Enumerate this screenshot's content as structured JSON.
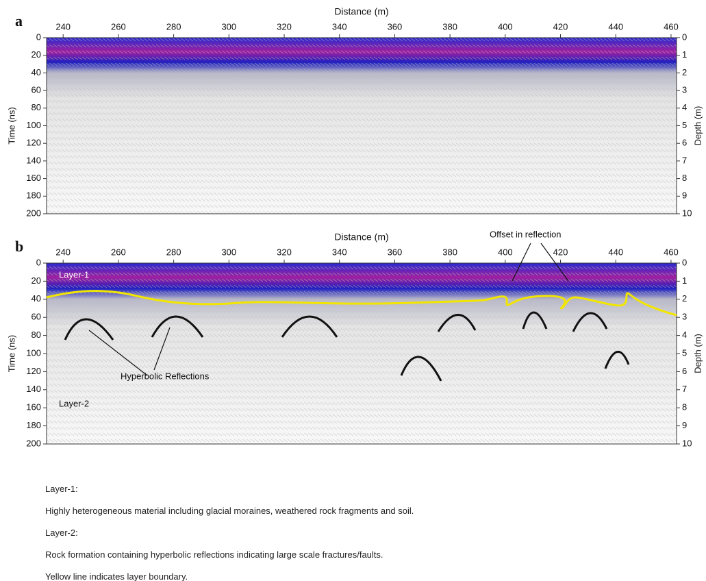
{
  "chart_data": [
    {
      "type": "radargram",
      "panel": "a",
      "xlabel": "Distance (m)",
      "ylabel": "Time (ns)",
      "y2label": "Depth (m)",
      "xlim": [
        234,
        462
      ],
      "xticks": [
        240,
        260,
        280,
        300,
        320,
        340,
        360,
        380,
        400,
        420,
        440,
        460
      ],
      "ylim": [
        0,
        200
      ],
      "yticks": [
        0,
        20,
        40,
        60,
        80,
        100,
        120,
        140,
        160,
        180,
        200
      ],
      "y2lim": [
        0,
        10
      ],
      "y2ticks": [
        0,
        1,
        2,
        3,
        4,
        5,
        6,
        7,
        8,
        9,
        10
      ]
    },
    {
      "type": "radargram",
      "panel": "b",
      "xlabel": "Distance (m)",
      "ylabel": "Time (ns)",
      "y2label": "Depth (m)",
      "xlim": [
        234,
        462
      ],
      "xticks": [
        240,
        260,
        280,
        300,
        320,
        340,
        360,
        380,
        400,
        420,
        440,
        460
      ],
      "ylim": [
        0,
        200
      ],
      "yticks": [
        0,
        20,
        40,
        60,
        80,
        100,
        120,
        140,
        160,
        180,
        200
      ],
      "y2lim": [
        0,
        10
      ],
      "y2ticks": [
        0,
        1,
        2,
        3,
        4,
        5,
        6,
        7,
        8,
        9,
        10
      ],
      "annotations": [
        "Layer-1",
        "Layer-2",
        "Hyperbolic Reflections",
        "Offset in reflection"
      ]
    }
  ],
  "captions": [
    "Layer-1:",
    "Highly heterogeneous material including glacial moraines, weathered rock fragments and soil.",
    "Layer-2:",
    "Rock formation containing hyperbolic reflections indicating large scale fractures/faults.",
    "Yellow line indicates layer boundary."
  ]
}
